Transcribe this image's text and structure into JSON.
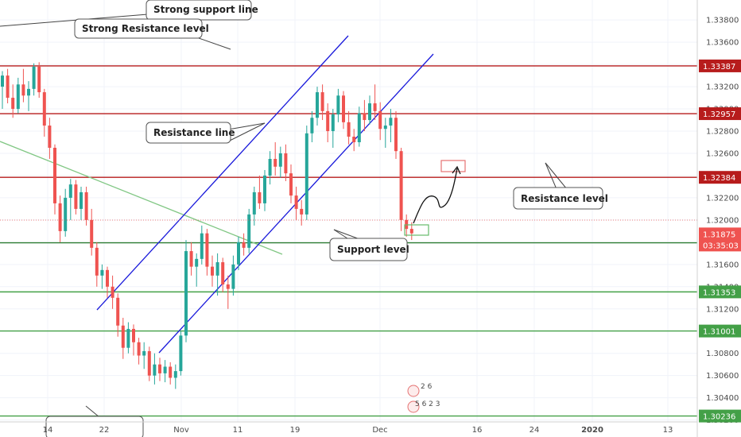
{
  "chart_data": {
    "type": "candlestick",
    "y_axis": {
      "range": [
        1.30183,
        1.3398
      ],
      "ticks": [
        "1.33800",
        "1.33600",
        "1.33400",
        "1.33200",
        "1.33000",
        "1.32800",
        "1.32600",
        "1.32400",
        "1.32200",
        "1.32000",
        "1.31800",
        "1.31600",
        "1.31400",
        "1.31200",
        "1.31000",
        "1.30800",
        "1.30600",
        "1.30400",
        "1.30200"
      ]
    },
    "x_axis": {
      "ticks": [
        "14",
        "22",
        "Nov",
        "11",
        "19",
        "Dec",
        "16",
        "24",
        "2020",
        "13"
      ]
    },
    "horizontal_levels": [
      {
        "value": 1.33387,
        "label": "1.33387",
        "color": "#b71c1c"
      },
      {
        "value": 1.32957,
        "label": "1.32957",
        "color": "#b71c1c"
      },
      {
        "value": 1.32384,
        "label": "1.32384",
        "color": "#b71c1c"
      },
      {
        "value": 1.31795,
        "label": "1.31795",
        "color": "#2e7d32"
      },
      {
        "value": 1.31353,
        "label": "1.31353",
        "color": "#43a047"
      },
      {
        "value": 1.31001,
        "label": "1.31001",
        "color": "#43a047"
      },
      {
        "value": 1.30236,
        "label": "1.30236",
        "color": "#43a047"
      }
    ],
    "current_price": {
      "value": 1.31875,
      "label": "1.31875",
      "countdown": "03:35:03",
      "color": "#ef5350"
    },
    "annotations": [
      "Strong support line",
      "Strong Resistance level",
      "Resistance line",
      "Resistance level",
      "Support level"
    ],
    "candle_colors": {
      "up": "#26a69a",
      "down": "#ef5350"
    },
    "ohlc": [
      [
        1.332,
        1.3334,
        1.33,
        1.333
      ],
      [
        1.333,
        1.3336,
        1.3305,
        1.331
      ],
      [
        1.331,
        1.3322,
        1.3292,
        1.33
      ],
      [
        1.33,
        1.3328,
        1.3296,
        1.3322
      ],
      [
        1.3322,
        1.3336,
        1.3306,
        1.3312
      ],
      [
        1.3312,
        1.3325,
        1.3298,
        1.3318
      ],
      [
        1.3318,
        1.3341,
        1.3312,
        1.3338
      ],
      [
        1.3338,
        1.3342,
        1.331,
        1.3315
      ],
      [
        1.3315,
        1.3318,
        1.3275,
        1.3285
      ],
      [
        1.3285,
        1.3292,
        1.3255,
        1.3265
      ],
      [
        1.3265,
        1.3268,
        1.3205,
        1.3215
      ],
      [
        1.3215,
        1.3222,
        1.318,
        1.319
      ],
      [
        1.319,
        1.3228,
        1.3185,
        1.322
      ],
      [
        1.322,
        1.3237,
        1.32,
        1.3232
      ],
      [
        1.3232,
        1.3236,
        1.3205,
        1.321
      ],
      [
        1.321,
        1.323,
        1.32,
        1.3225
      ],
      [
        1.3225,
        1.323,
        1.3195,
        1.32
      ],
      [
        1.32,
        1.321,
        1.3168,
        1.3175
      ],
      [
        1.3175,
        1.318,
        1.314,
        1.315
      ],
      [
        1.315,
        1.316,
        1.3138,
        1.3155
      ],
      [
        1.3155,
        1.3158,
        1.313,
        1.314
      ],
      [
        1.314,
        1.315,
        1.312,
        1.313
      ],
      [
        1.313,
        1.3134,
        1.3095,
        1.3105
      ],
      [
        1.3105,
        1.3112,
        1.3075,
        1.3085
      ],
      [
        1.3085,
        1.3108,
        1.308,
        1.3102
      ],
      [
        1.3102,
        1.3106,
        1.3078,
        1.309
      ],
      [
        1.309,
        1.3094,
        1.307,
        1.3078
      ],
      [
        1.3078,
        1.309,
        1.3066,
        1.3082
      ],
      [
        1.3082,
        1.3086,
        1.3055,
        1.306
      ],
      [
        1.306,
        1.308,
        1.3052,
        1.307
      ],
      [
        1.307,
        1.3076,
        1.3055,
        1.3062
      ],
      [
        1.3062,
        1.3074,
        1.3054,
        1.3068
      ],
      [
        1.3068,
        1.3072,
        1.3052,
        1.3058
      ],
      [
        1.3058,
        1.307,
        1.3048,
        1.3064
      ],
      [
        1.3064,
        1.31,
        1.306,
        1.3096
      ],
      [
        1.3096,
        1.3182,
        1.309,
        1.3172
      ],
      [
        1.3172,
        1.318,
        1.315,
        1.3158
      ],
      [
        1.3158,
        1.317,
        1.314,
        1.3165
      ],
      [
        1.3165,
        1.3195,
        1.316,
        1.3188
      ],
      [
        1.3188,
        1.3192,
        1.315,
        1.3158
      ],
      [
        1.3158,
        1.3168,
        1.314,
        1.315
      ],
      [
        1.315,
        1.317,
        1.3132,
        1.3162
      ],
      [
        1.3162,
        1.3166,
        1.3135,
        1.3142
      ],
      [
        1.3142,
        1.315,
        1.312,
        1.3138
      ],
      [
        1.3138,
        1.3168,
        1.3132,
        1.316
      ],
      [
        1.316,
        1.3185,
        1.3155,
        1.318
      ],
      [
        1.318,
        1.3188,
        1.3168,
        1.3175
      ],
      [
        1.3175,
        1.321,
        1.317,
        1.3205
      ],
      [
        1.3205,
        1.323,
        1.3195,
        1.3225
      ],
      [
        1.3225,
        1.324,
        1.321,
        1.3215
      ],
      [
        1.3215,
        1.3245,
        1.3208,
        1.324
      ],
      [
        1.324,
        1.3262,
        1.3232,
        1.3255
      ],
      [
        1.3255,
        1.327,
        1.324,
        1.3248
      ],
      [
        1.3248,
        1.3266,
        1.3238,
        1.326
      ],
      [
        1.326,
        1.3268,
        1.3235,
        1.3242
      ],
      [
        1.3242,
        1.325,
        1.3215,
        1.3222
      ],
      [
        1.3222,
        1.323,
        1.32,
        1.321
      ],
      [
        1.321,
        1.3218,
        1.3195,
        1.3205
      ],
      [
        1.3205,
        1.3285,
        1.32,
        1.3278
      ],
      [
        1.3278,
        1.3298,
        1.327,
        1.3292
      ],
      [
        1.3292,
        1.332,
        1.3285,
        1.3315
      ],
      [
        1.3315,
        1.3322,
        1.329,
        1.3298
      ],
      [
        1.3298,
        1.3305,
        1.327,
        1.328
      ],
      [
        1.328,
        1.33,
        1.3265,
        1.3295
      ],
      [
        1.3295,
        1.3318,
        1.3288,
        1.3312
      ],
      [
        1.3312,
        1.3316,
        1.3282,
        1.3288
      ],
      [
        1.3288,
        1.3298,
        1.3268,
        1.3275
      ],
      [
        1.3275,
        1.3282,
        1.3262,
        1.327
      ],
      [
        1.327,
        1.3302,
        1.3266,
        1.3296
      ],
      [
        1.3296,
        1.3308,
        1.328,
        1.329
      ],
      [
        1.329,
        1.3312,
        1.3286,
        1.3305
      ],
      [
        1.3305,
        1.3322,
        1.329,
        1.3298
      ],
      [
        1.3298,
        1.3306,
        1.3272,
        1.3282
      ],
      [
        1.3282,
        1.3292,
        1.3265,
        1.3285
      ],
      [
        1.3285,
        1.33,
        1.327,
        1.3292
      ],
      [
        1.3292,
        1.3298,
        1.3255,
        1.3262
      ],
      [
        1.3262,
        1.3265,
        1.319,
        1.32
      ],
      [
        1.32,
        1.3205,
        1.3185,
        1.3192
      ],
      [
        1.3192,
        1.3198,
        1.3182,
        1.3188
      ]
    ]
  },
  "labels": {
    "strong_support": "Strong support line",
    "strong_resistance": "Strong Resistance level",
    "resistance_line": "Resistance line",
    "resistance_level": "Resistance level",
    "support_level": "Support level",
    "event_codes": "2 6 5 6 2 3"
  }
}
